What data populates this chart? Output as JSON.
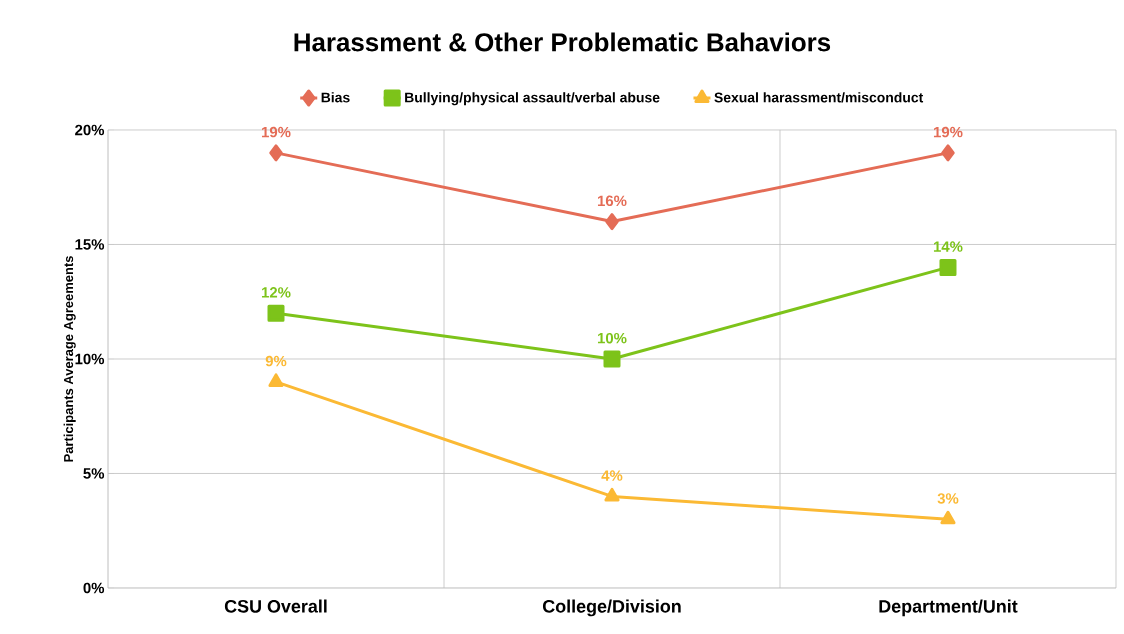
{
  "chart_data": {
    "type": "line",
    "title": "Harassment & Other Problematic Bahaviors",
    "ylabel": "Participants Average Agreements",
    "categories": [
      "CSU Overall",
      "College/Division",
      "Department/Unit"
    ],
    "series": [
      {
        "name": "Bias",
        "color": "#e46c56",
        "marker": "diamond",
        "values": [
          19,
          16,
          19
        ],
        "value_labels": [
          "19%",
          "16%",
          "19%"
        ]
      },
      {
        "name": "Bullying/physical assault/verbal abuse",
        "color": "#7dc31a",
        "marker": "square",
        "values": [
          12,
          10,
          14
        ],
        "value_labels": [
          "12%",
          "10%",
          "14%"
        ]
      },
      {
        "name": "Sexual harassment/misconduct",
        "color": "#fbb934",
        "marker": "triangle",
        "values": [
          9,
          4,
          3
        ],
        "value_labels": [
          "9%",
          "4%",
          "3%"
        ]
      }
    ],
    "ylim": [
      0,
      20
    ],
    "yticks": [
      {
        "value": 0,
        "label": "0%"
      },
      {
        "value": 5,
        "label": "5%"
      },
      {
        "value": 10,
        "label": "10%"
      },
      {
        "value": 15,
        "label": "15%"
      },
      {
        "value": 20,
        "label": "20%"
      }
    ],
    "grid": true,
    "legend": "top",
    "line_style": "solid"
  }
}
